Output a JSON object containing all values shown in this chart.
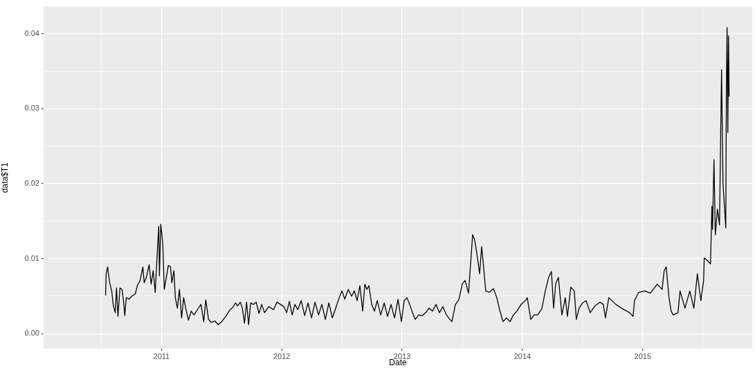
{
  "chart_data": {
    "type": "line",
    "xlabel": "Date",
    "ylabel": "data$T1",
    "legend": false,
    "grid": true,
    "marker": "none",
    "line_style": "solid",
    "xlim": [
      2010.02,
      2015.91
    ],
    "xticks": [
      {
        "value": 2010.5,
        "label": null
      },
      2011,
      {
        "value": 2011.5,
        "label": null
      },
      2012,
      {
        "value": 2012.5,
        "label": null
      },
      2013,
      {
        "value": 2013.5,
        "label": null
      },
      2014,
      {
        "value": 2014.5,
        "label": null
      },
      2015,
      {
        "value": 2015.5,
        "label": null
      }
    ],
    "ylim": [
      -0.002,
      0.0436
    ],
    "yticks": [
      {
        "value": 0,
        "label": "0.00"
      },
      {
        "value": 0.005,
        "label": null
      },
      0.01,
      {
        "value": 0.015,
        "label": null
      },
      0.02,
      {
        "value": 0.025,
        "label": null
      },
      0.03,
      {
        "value": 0.035,
        "label": null
      },
      0.04
    ],
    "series": [
      {
        "color": "#000000",
        "x": [
          2010.535,
          2010.54,
          2010.552,
          2010.569,
          2010.586,
          2010.598,
          2010.615,
          2010.626,
          2010.638,
          2010.655,
          2010.672,
          2010.684,
          2010.695,
          2010.707,
          2010.73,
          2010.753,
          2010.782,
          2010.799,
          2010.822,
          2010.845,
          2010.856,
          2010.874,
          2010.897,
          2010.914,
          2010.931,
          2010.948,
          2010.966,
          2010.977,
          2010.983,
          2010.994,
          2011.011,
          2011.023,
          2011.04,
          2011.057,
          2011.075,
          2011.086,
          2011.103,
          2011.115,
          2011.132,
          2011.149,
          2011.167,
          2011.184,
          2011.201,
          2011.224,
          2011.247,
          2011.27,
          2011.299,
          2011.328,
          2011.351,
          2011.368,
          2011.391,
          2011.414,
          2011.443,
          2011.471,
          2011.5,
          2011.534,
          2011.569,
          2011.592,
          2011.615,
          2011.632,
          2011.655,
          2011.672,
          2011.69,
          2011.707,
          2011.724,
          2011.741,
          2011.764,
          2011.787,
          2011.81,
          2011.833,
          2011.856,
          2011.891,
          2011.931,
          2011.96,
          2011.989,
          2012.017,
          2012.04,
          2012.063,
          2012.086,
          2012.109,
          2012.132,
          2012.161,
          2012.19,
          2012.218,
          2012.247,
          2012.276,
          2012.305,
          2012.333,
          2012.362,
          2012.391,
          2012.42,
          2012.448,
          2012.477,
          2012.5,
          2012.523,
          2012.552,
          2012.58,
          2012.603,
          2012.626,
          2012.649,
          2012.672,
          2012.69,
          2012.707,
          2012.724,
          2012.747,
          2012.77,
          2012.793,
          2012.822,
          2012.851,
          2012.879,
          2012.908,
          2012.937,
          2012.966,
          2012.994,
          2013.017,
          2013.04,
          2013.063,
          2013.086,
          2013.109,
          2013.138,
          2013.167,
          2013.195,
          2013.224,
          2013.253,
          2013.282,
          2013.31,
          2013.339,
          2013.368,
          2013.397,
          2013.414,
          2013.443,
          2013.471,
          2013.5,
          2013.523,
          2013.552,
          2013.569,
          2013.586,
          2013.603,
          2013.621,
          2013.644,
          2013.661,
          2013.672,
          2013.695,
          2013.724,
          2013.759,
          2013.787,
          2013.81,
          2013.839,
          2013.868,
          2013.897,
          2013.925,
          2013.954,
          2013.989,
          2014.029,
          2014.04,
          2014.069,
          2014.098,
          2014.126,
          2014.161,
          2014.19,
          2014.218,
          2014.241,
          2014.259,
          2014.276,
          2014.299,
          2014.328,
          2014.356,
          2014.374,
          2014.402,
          2014.431,
          2014.448,
          2014.471,
          2014.5,
          2014.529,
          2014.563,
          2014.603,
          2014.644,
          2014.672,
          2014.69,
          2014.718,
          2014.776,
          2014.833,
          2014.891,
          2014.92,
          2014.931,
          2014.966,
          2015.017,
          2015.063,
          2015.121,
          2015.161,
          2015.178,
          2015.195,
          2015.218,
          2015.236,
          2015.253,
          2015.293,
          2015.31,
          2015.351,
          2015.391,
          2015.425,
          2015.454,
          2015.483,
          2015.506,
          2015.511,
          2015.534,
          2015.563,
          2015.575,
          2015.58,
          2015.592,
          2015.603,
          2015.621,
          2015.638,
          2015.649,
          2015.655,
          2015.667,
          2015.684,
          2015.69,
          2015.695,
          2015.701,
          2015.707,
          2015.713,
          2015.718
        ],
        "values": [
          0.0051,
          0.008,
          0.0089,
          0.0068,
          0.0057,
          0.0039,
          0.0028,
          0.0061,
          0.0023,
          0.0061,
          0.0059,
          0.0044,
          0.0024,
          0.0048,
          0.0046,
          0.005,
          0.0053,
          0.0064,
          0.0071,
          0.0089,
          0.0068,
          0.0075,
          0.0092,
          0.0066,
          0.0084,
          0.0055,
          0.0112,
          0.0143,
          0.0077,
          0.0146,
          0.0119,
          0.0059,
          0.0075,
          0.0091,
          0.0089,
          0.0068,
          0.0084,
          0.0048,
          0.0034,
          0.0059,
          0.0021,
          0.0048,
          0.0034,
          0.0018,
          0.003,
          0.0025,
          0.0032,
          0.0039,
          0.0016,
          0.0045,
          0.0019,
          0.0015,
          0.0017,
          0.0012,
          0.0016,
          0.0023,
          0.0032,
          0.0035,
          0.0041,
          0.0037,
          0.0042,
          0.0034,
          0.0014,
          0.0042,
          0.0012,
          0.0041,
          0.0039,
          0.0042,
          0.0027,
          0.0039,
          0.0028,
          0.0036,
          0.0032,
          0.0042,
          0.0039,
          0.0036,
          0.0028,
          0.0043,
          0.0025,
          0.0039,
          0.0032,
          0.0044,
          0.0024,
          0.0041,
          0.0021,
          0.0042,
          0.0025,
          0.0039,
          0.0019,
          0.0041,
          0.0021,
          0.0034,
          0.0048,
          0.0057,
          0.0046,
          0.0059,
          0.005,
          0.0057,
          0.0044,
          0.0064,
          0.003,
          0.0066,
          0.0059,
          0.0064,
          0.0039,
          0.003,
          0.0044,
          0.0025,
          0.0041,
          0.0023,
          0.0039,
          0.0021,
          0.0046,
          0.0016,
          0.0044,
          0.0048,
          0.0039,
          0.0028,
          0.0019,
          0.0025,
          0.0024,
          0.0028,
          0.0034,
          0.003,
          0.0039,
          0.0028,
          0.0036,
          0.0025,
          0.0019,
          0.0016,
          0.0039,
          0.0045,
          0.0066,
          0.0071,
          0.0054,
          0.0093,
          0.0132,
          0.0125,
          0.0107,
          0.008,
          0.0116,
          0.0098,
          0.0057,
          0.0055,
          0.006,
          0.0048,
          0.0032,
          0.0016,
          0.0021,
          0.0016,
          0.0025,
          0.003,
          0.0039,
          0.0045,
          0.0048,
          0.0019,
          0.0025,
          0.0025,
          0.0033,
          0.0057,
          0.0075,
          0.0083,
          0.0034,
          0.0066,
          0.0075,
          0.0025,
          0.0048,
          0.0023,
          0.0062,
          0.0057,
          0.0019,
          0.0034,
          0.0041,
          0.0044,
          0.0028,
          0.0037,
          0.0042,
          0.0039,
          0.0021,
          0.0048,
          0.0039,
          0.0033,
          0.0028,
          0.0023,
          0.0044,
          0.0055,
          0.0057,
          0.0054,
          0.0066,
          0.0059,
          0.0084,
          0.0089,
          0.0048,
          0.003,
          0.0025,
          0.0028,
          0.0057,
          0.0034,
          0.0057,
          0.0034,
          0.008,
          0.0044,
          0.0071,
          0.0101,
          0.0098,
          0.0093,
          0.017,
          0.0139,
          0.0232,
          0.0132,
          0.0166,
          0.0145,
          0.0282,
          0.0352,
          0.02,
          0.0157,
          0.0141,
          0.0323,
          0.0408,
          0.0268,
          0.0397,
          0.0316
        ]
      }
    ]
  }
}
